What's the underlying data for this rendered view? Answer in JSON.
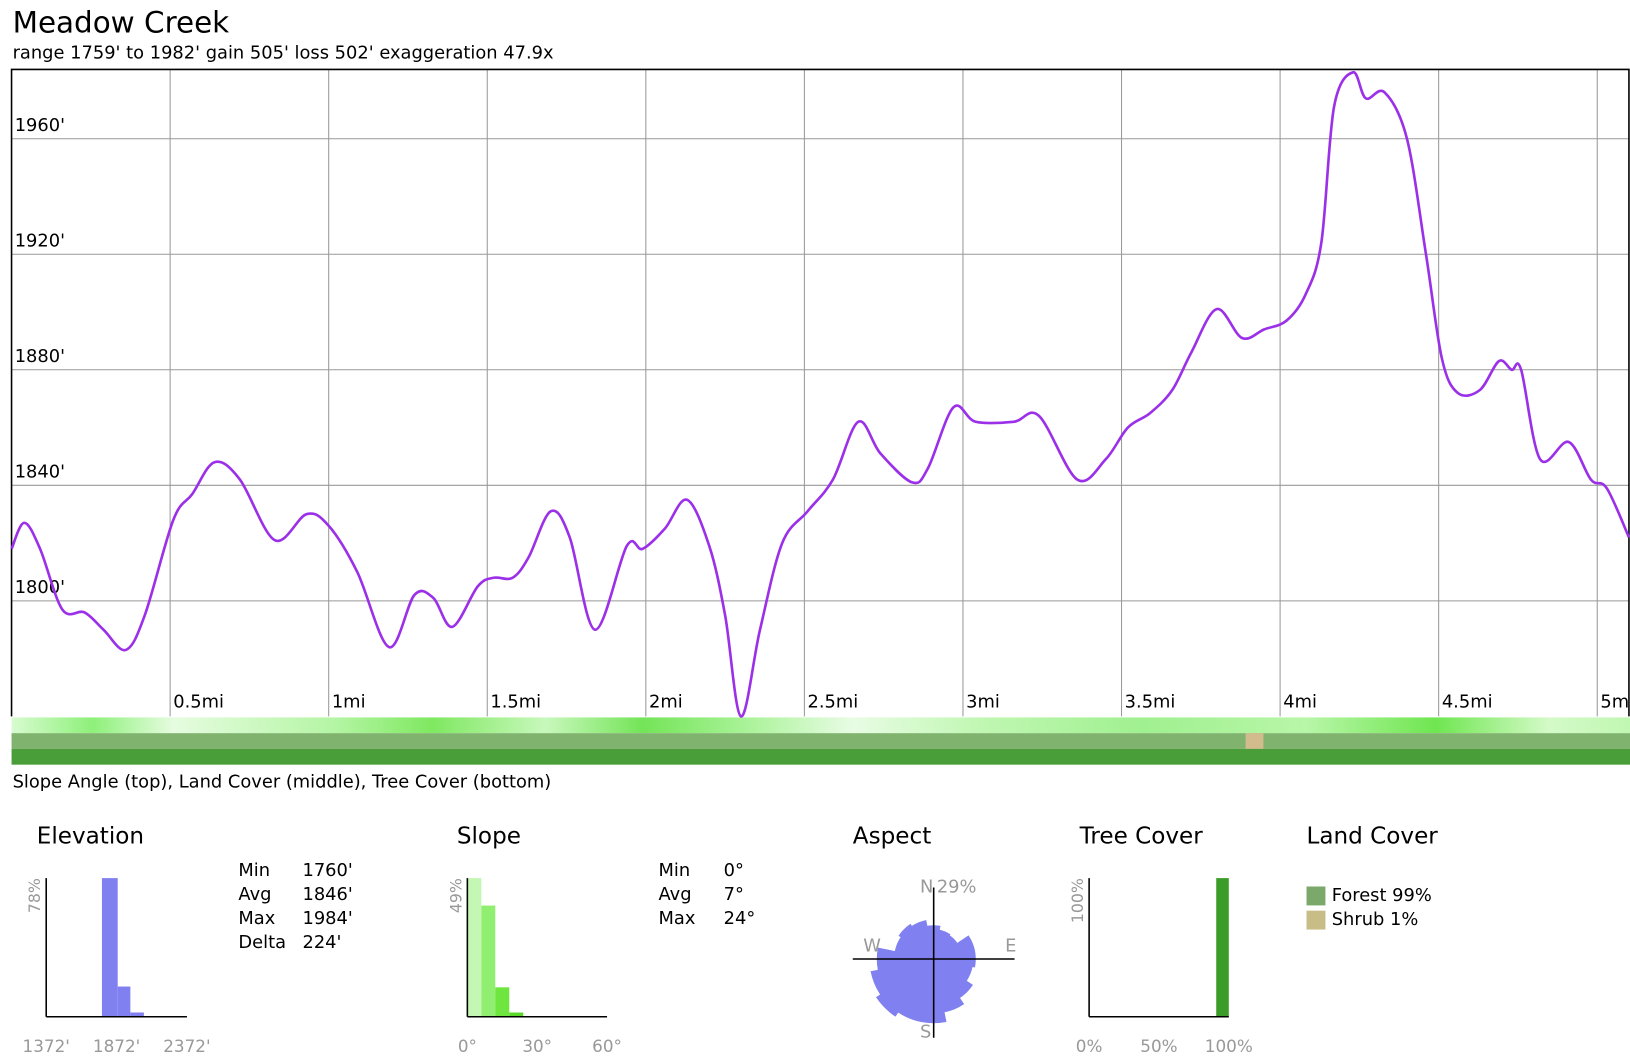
{
  "title": "Meadow Creek",
  "subtitle": "range 1759' to 1982'  gain 505'  loss 502'  exaggeration 47.9x",
  "strip_caption": "Slope Angle (top), Land Cover (middle), Tree Cover (bottom)",
  "chart_data": [
    {
      "type": "line",
      "color": "#9b30e8",
      "grid": true,
      "x": [
        0,
        0.04,
        0.09,
        0.16,
        0.23,
        0.29,
        0.36,
        0.42,
        0.51,
        0.57,
        0.64,
        0.72,
        0.83,
        0.93,
        1.0,
        1.09,
        1.19,
        1.27,
        1.33,
        1.39,
        1.47,
        1.52,
        1.58,
        1.63,
        1.7,
        1.76,
        1.84,
        1.94,
        1.99,
        2.06,
        2.13,
        2.2,
        2.25,
        2.3,
        2.36,
        2.43,
        2.51,
        2.59,
        2.67,
        2.74,
        2.84,
        2.89,
        2.97,
        3.04,
        3.16,
        3.24,
        3.36,
        3.45,
        3.52,
        3.59,
        3.66,
        3.72,
        3.8,
        3.88,
        3.95,
        4.02,
        4.08,
        4.13,
        4.17,
        4.23,
        4.27,
        4.33,
        4.4,
        4.46,
        4.51,
        4.56,
        4.63,
        4.69,
        4.73,
        4.76,
        4.82,
        4.91,
        4.98,
        5.03,
        5.1
      ],
      "values": [
        1818,
        1827,
        1818,
        1797,
        1796,
        1790,
        1783,
        1795,
        1828,
        1837,
        1848,
        1842,
        1821,
        1830,
        1826,
        1810,
        1784,
        1802,
        1801,
        1791,
        1805,
        1808,
        1808,
        1815,
        1831,
        1822,
        1790,
        1819,
        1818,
        1825,
        1835,
        1819,
        1795,
        1760,
        1790,
        1820,
        1831,
        1842,
        1862,
        1851,
        1841,
        1846,
        1867,
        1862,
        1862,
        1864,
        1842,
        1849,
        1860,
        1865,
        1873,
        1886,
        1901,
        1891,
        1894,
        1897,
        1906,
        1924,
        1971,
        1983,
        1974,
        1976,
        1960,
        1920,
        1884,
        1872,
        1873,
        1883,
        1880,
        1880,
        1849,
        1855,
        1842,
        1839,
        1822
      ],
      "xlim": [
        0,
        5.1
      ],
      "ylim": [
        1760,
        1984
      ],
      "xticks": [
        {
          "value": 0.5,
          "label": "0.5mi"
        },
        {
          "value": 1,
          "label": "1mi"
        },
        {
          "value": 1.5,
          "label": "1.5mi"
        },
        {
          "value": 2,
          "label": "2mi"
        },
        {
          "value": 2.5,
          "label": "2.5mi"
        },
        {
          "value": 3,
          "label": "3mi"
        },
        {
          "value": 3.5,
          "label": "3.5mi"
        },
        {
          "value": 4,
          "label": "4mi"
        },
        {
          "value": 4.5,
          "label": "4.5mi"
        },
        {
          "value": 5,
          "label": "5mi"
        }
      ],
      "yticks": [
        {
          "value": 1800,
          "label": "1800'"
        },
        {
          "value": 1840,
          "label": "1840'"
        },
        {
          "value": 1880,
          "label": "1880'"
        },
        {
          "value": 1920,
          "label": "1920'"
        },
        {
          "value": 1960,
          "label": "1960'"
        }
      ]
    },
    {
      "type": "histogram",
      "title": "Elevation",
      "color": "#8080f0",
      "bins": [
        1768,
        1880,
        1970,
        2066
      ],
      "values": [
        78,
        17,
        2.4
      ],
      "xlim": [
        1372,
        2372
      ],
      "ylim": [
        0,
        78
      ],
      "xticks": [
        {
          "value": 1372,
          "label": "1372'"
        },
        {
          "value": 1872,
          "label": "1872'"
        },
        {
          "value": 2372,
          "label": "2372'"
        }
      ],
      "yticks": [
        {
          "value": 78,
          "label": "78%"
        }
      ],
      "stats": [
        [
          "Min",
          "1760'"
        ],
        [
          "Avg",
          "1846'"
        ],
        [
          "Max",
          "1984'"
        ],
        [
          "Delta",
          "224'"
        ]
      ]
    },
    {
      "type": "histogram",
      "title": "Slope",
      "colors": [
        "#c4f7b4",
        "#90ee70",
        "#6fe640",
        "#5bd82a"
      ],
      "bins": [
        0,
        6,
        12,
        18,
        24
      ],
      "values": [
        49,
        39.3,
        10.4,
        1.5
      ],
      "xlim": [
        0,
        60
      ],
      "ylim": [
        0,
        49
      ],
      "xticks": [
        {
          "value": 0,
          "label": "0°"
        },
        {
          "value": 30,
          "label": "30°"
        },
        {
          "value": 60,
          "label": "60°"
        }
      ],
      "yticks": [
        {
          "value": 49,
          "label": "49%"
        }
      ],
      "stats": [
        [
          "Min",
          "0°"
        ],
        [
          "Avg",
          "7°"
        ],
        [
          "Max",
          "24°"
        ]
      ]
    },
    {
      "type": "polar",
      "title": "Aspect",
      "color": "#8080f0",
      "compass": [
        "N",
        "E",
        "S",
        "W"
      ],
      "values": [
        13.6,
        12,
        11.5,
        17,
        17,
        16,
        19,
        22,
        26,
        26,
        28,
        26,
        23,
        16,
        17,
        16
      ],
      "rlim": [
        0,
        29
      ],
      "rticks": [
        {
          "value": 29,
          "label": "29%"
        }
      ]
    },
    {
      "type": "histogram",
      "title": "Tree Cover",
      "color": "#3c9c2a",
      "bins": [
        91,
        100
      ],
      "values": [
        100
      ],
      "xlim": [
        0,
        100
      ],
      "ylim": [
        0,
        100
      ],
      "xticks": [
        {
          "value": 0,
          "label": "0%"
        },
        {
          "value": 50,
          "label": "50%"
        },
        {
          "value": 100,
          "label": "100%"
        }
      ],
      "yticks": [
        {
          "value": 100,
          "label": "100%"
        }
      ]
    },
    {
      "type": "legend",
      "title": "Land Cover",
      "categories": [
        "Forest",
        "Shrub"
      ],
      "values": [
        99,
        1
      ],
      "value_labels": [
        "99%",
        "1%"
      ],
      "colors": [
        "#7aa96b",
        "#c8bd86"
      ]
    }
  ]
}
